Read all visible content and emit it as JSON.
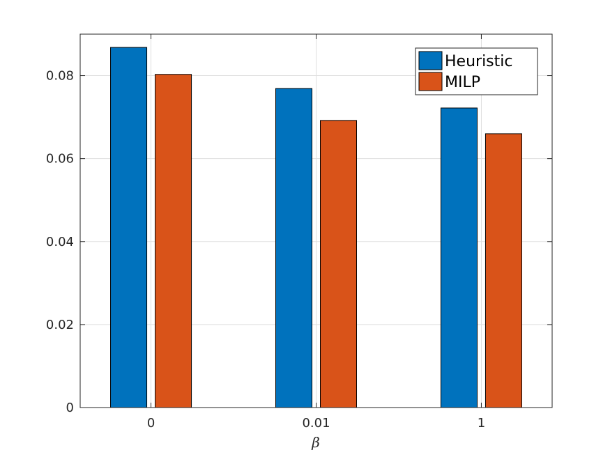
{
  "chart_data": {
    "type": "bar",
    "title": "",
    "xlabel": "β",
    "ylabel": "",
    "categories": [
      "0",
      "0.01",
      "1"
    ],
    "series": [
      {
        "name": "Heuristic",
        "color": "#0072BD",
        "values": [
          0.0868,
          0.0769,
          0.0722
        ]
      },
      {
        "name": "MILP",
        "color": "#D95319",
        "values": [
          0.0803,
          0.0692,
          0.066
        ]
      }
    ],
    "ylim": [
      0,
      0.09
    ],
    "yticks": [
      0,
      0.02,
      0.04,
      0.06,
      0.08
    ],
    "ytick_labels": [
      "0",
      "0.02",
      "0.04",
      "0.06",
      "0.08"
    ],
    "grid": true,
    "legend_position": "top-right"
  }
}
